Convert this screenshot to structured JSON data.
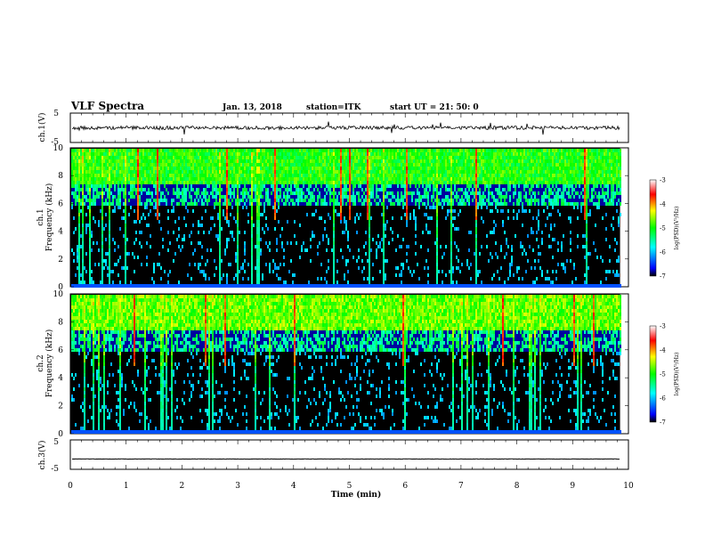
{
  "header": {
    "title": "VLF Spectra",
    "date": "Jan. 13, 2018",
    "station": "station=ITK",
    "start_time": "start UT =  21: 50: 0"
  },
  "chart_data": [
    {
      "type": "line",
      "name": "ch1-waveform",
      "ylabel": "ch.1(V)",
      "ylim": [
        -5,
        5
      ],
      "yticks": [
        "5",
        "-5"
      ],
      "xlim": [
        0,
        10
      ],
      "baseline": 0,
      "amplitude_approx": 1.2,
      "color": "#000000"
    },
    {
      "type": "heatmap",
      "name": "ch1-spectrogram",
      "ylabel": "Frequency (kHz)",
      "channel_label": "ch.1",
      "ylim": [
        0,
        10
      ],
      "yticks": [
        "0",
        "2",
        "4",
        "6",
        "8",
        "10"
      ],
      "xlim": [
        0,
        9.85
      ],
      "colorbar": {
        "label": "log(PSD)(V²/Hz)",
        "ticks": [
          "-3",
          "-4",
          "-5",
          "-6",
          "-7"
        ],
        "range": [
          -7,
          -3
        ]
      }
    },
    {
      "type": "heatmap",
      "name": "ch2-spectrogram",
      "ylabel": "Frequency (kHz)",
      "channel_label": "ch.2",
      "ylim": [
        0,
        10
      ],
      "yticks": [
        "0",
        "2",
        "4",
        "6",
        "8",
        "10"
      ],
      "xlim": [
        0,
        9.85
      ],
      "colorbar": {
        "label": "log(PSD)(V²/Hz)",
        "ticks": [
          "-3",
          "-4",
          "-5",
          "-6",
          "-7"
        ],
        "range": [
          -7,
          -3
        ]
      }
    },
    {
      "type": "line",
      "name": "ch3-waveform",
      "ylabel": "ch.3(V)",
      "ylim": [
        -5,
        5
      ],
      "yticks": [
        "5",
        "-5"
      ],
      "xlim": [
        0,
        10
      ],
      "baseline": -1.5,
      "amplitude_approx": 0.1,
      "color": "#000000"
    }
  ],
  "x_axis": {
    "label": "Time (min)",
    "ticks": [
      "0",
      "1",
      "2",
      "3",
      "4",
      "5",
      "6",
      "7",
      "8",
      "9",
      "10"
    ]
  },
  "colorbar_colors": [
    "#000000",
    "#0000ff",
    "#00ffff",
    "#00ff00",
    "#ffff00",
    "#ff0000",
    "#ffffff"
  ]
}
